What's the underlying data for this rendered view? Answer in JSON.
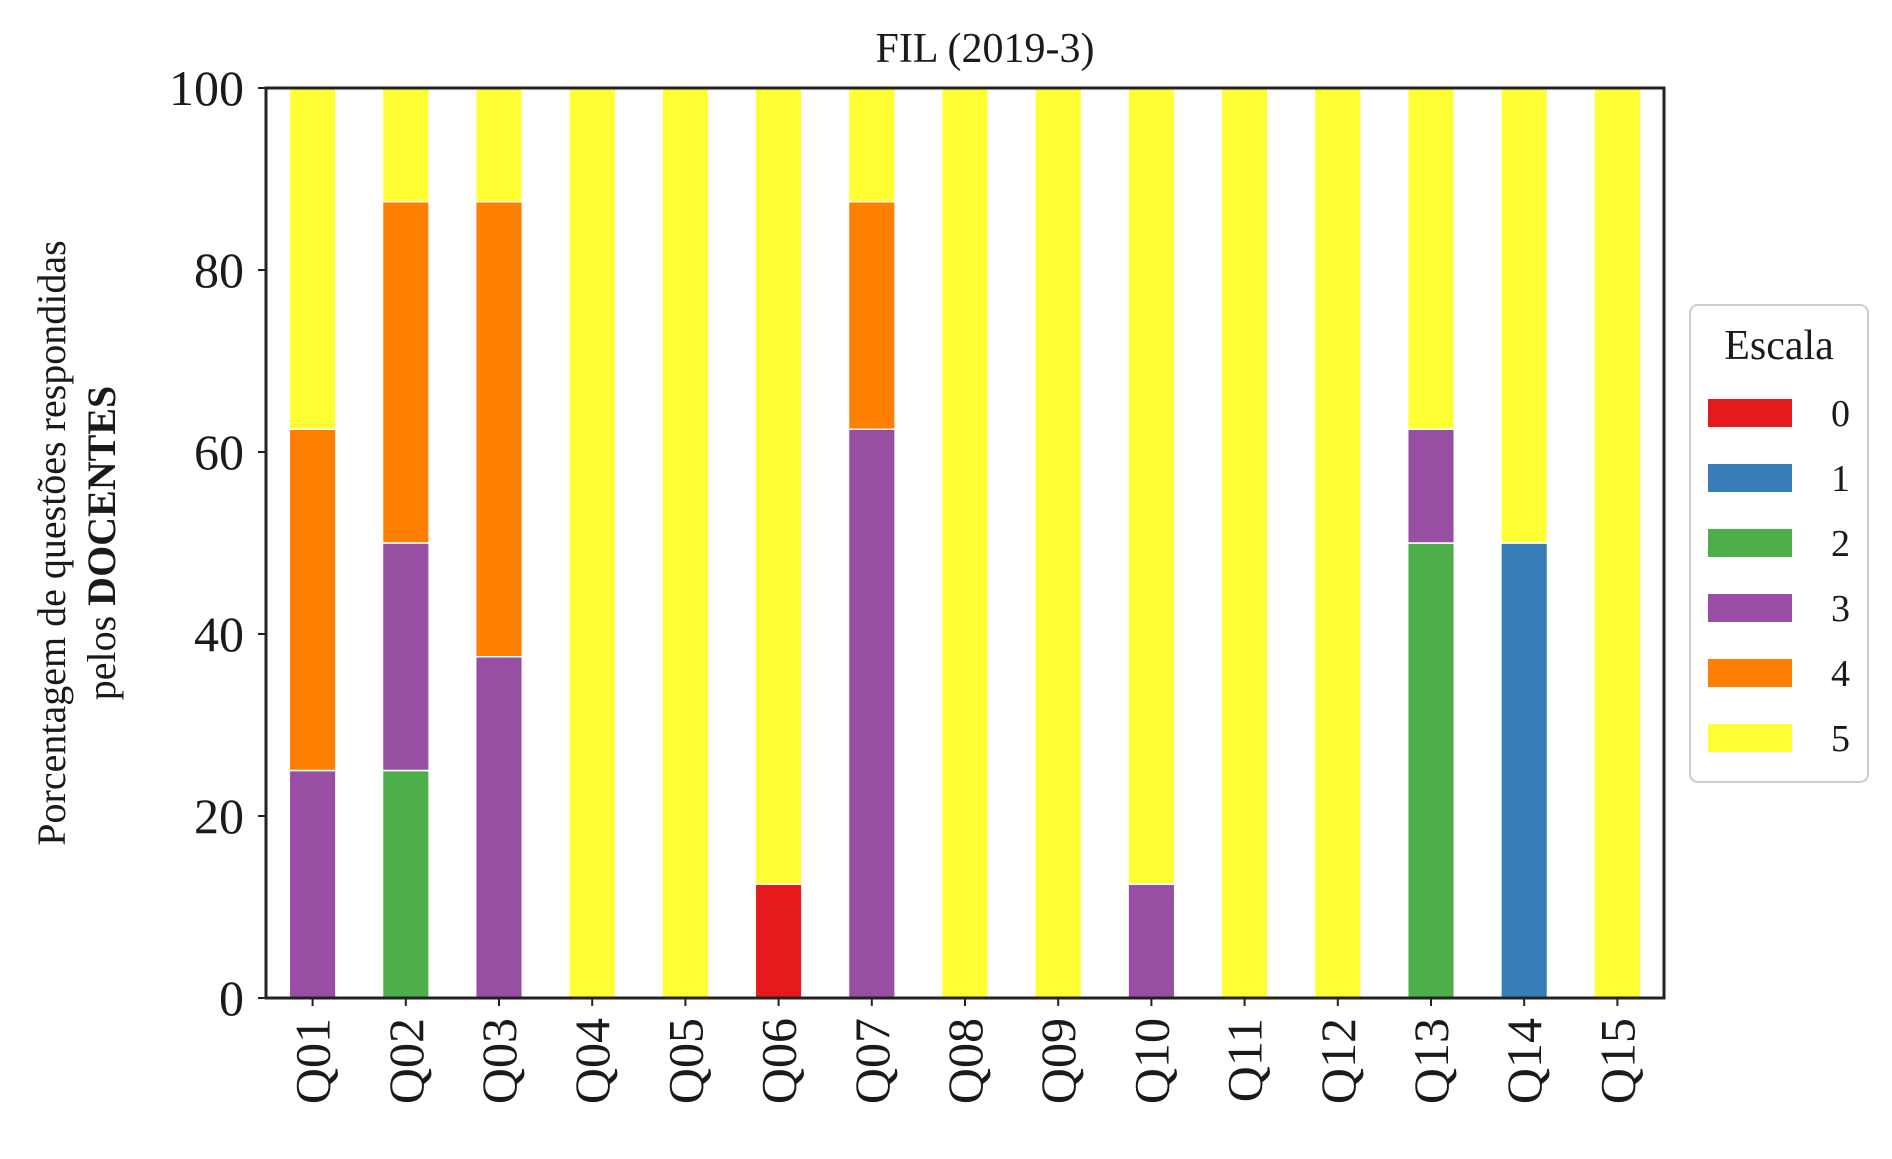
{
  "chart_data": {
    "type": "bar",
    "stacked": true,
    "title": "FIL (2019-3)",
    "ylabel_line1": "Porcentagem de questões respondidas",
    "ylabel_line2_prefix": "pelos ",
    "ylabel_line2_bold": "DOCENTES",
    "ylim": [
      0,
      100
    ],
    "yticks": [
      "0",
      "20",
      "40",
      "60",
      "80",
      "100"
    ],
    "ytick_values": [
      0,
      20,
      40,
      60,
      80,
      100
    ],
    "grid": false,
    "legend_position": "right",
    "legend_title": "Escala",
    "categories": [
      "Q01",
      "Q02",
      "Q03",
      "Q04",
      "Q05",
      "Q06",
      "Q07",
      "Q08",
      "Q09",
      "Q10",
      "Q11",
      "Q12",
      "Q13",
      "Q14",
      "Q15"
    ],
    "series": [
      {
        "name": "0",
        "color": "#e41a1c",
        "values": [
          0,
          0,
          0,
          0,
          0,
          12.5,
          0,
          0,
          0,
          0,
          0,
          0,
          0,
          0,
          0
        ]
      },
      {
        "name": "1",
        "color": "#377eb8",
        "values": [
          0,
          0,
          0,
          0,
          0,
          0,
          0,
          0,
          0,
          0,
          0,
          0,
          0,
          50,
          0
        ]
      },
      {
        "name": "2",
        "color": "#4daf4a",
        "values": [
          0,
          25,
          0,
          0,
          0,
          0,
          0,
          0,
          0,
          0,
          0,
          0,
          50,
          0,
          0
        ]
      },
      {
        "name": "3",
        "color": "#984ea3",
        "values": [
          25,
          25,
          37.5,
          0,
          0,
          0,
          62.5,
          0,
          0,
          12.5,
          0,
          0,
          12.5,
          0,
          0
        ]
      },
      {
        "name": "4",
        "color": "#ff7f00",
        "values": [
          37.5,
          37.5,
          50,
          0,
          0,
          0,
          25,
          0,
          0,
          0,
          0,
          0,
          0,
          0,
          0
        ]
      },
      {
        "name": "5",
        "color": "#ffff33",
        "values": [
          37.5,
          12.5,
          12.5,
          100,
          100,
          87.5,
          12.5,
          100,
          100,
          87.5,
          100,
          100,
          37.5,
          50,
          100
        ]
      }
    ]
  }
}
